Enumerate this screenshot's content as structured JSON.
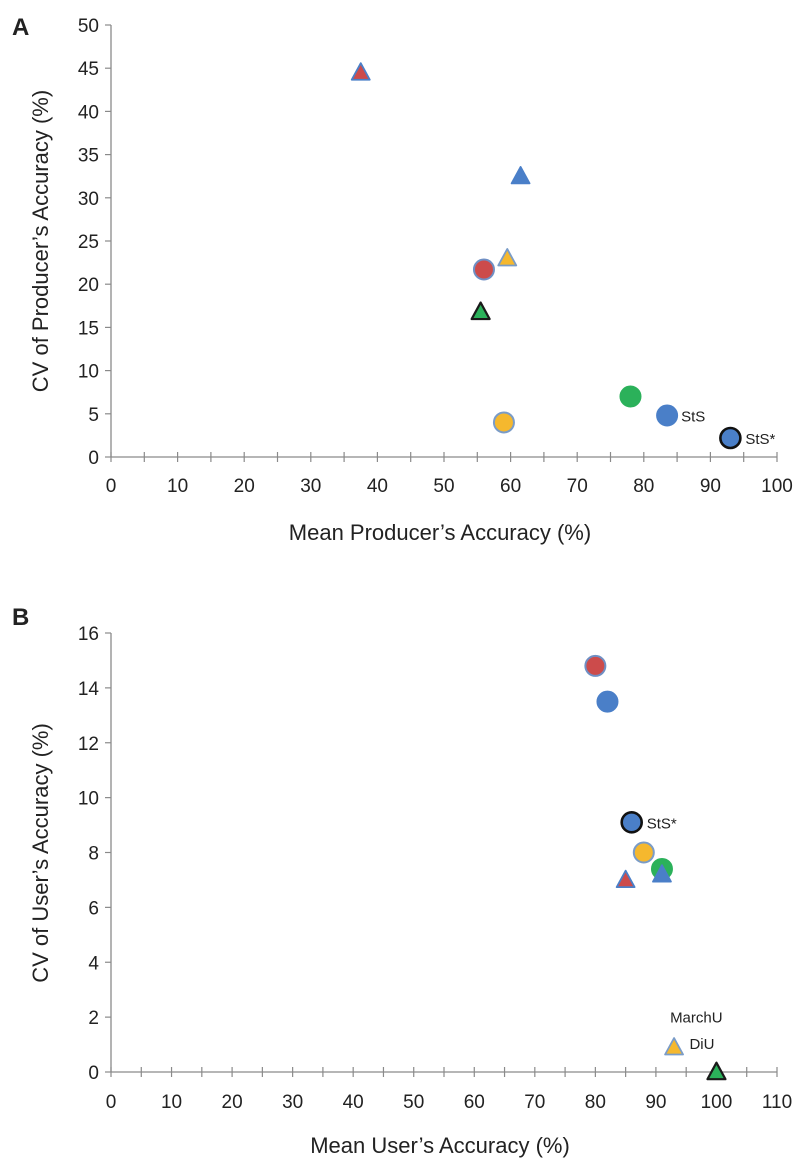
{
  "chart_data": [
    {
      "panel": "A",
      "type": "scatter",
      "xlabel": "Mean Producer’s Accuracy (%)",
      "ylabel": "CV of Producer’s Accuracy (%)",
      "xlim": [
        0,
        100
      ],
      "ylim": [
        0,
        50
      ],
      "xticks": [
        0,
        10,
        20,
        30,
        40,
        50,
        60,
        70,
        80,
        90,
        100
      ],
      "yticks": [
        0,
        5,
        10,
        15,
        20,
        25,
        30,
        35,
        40,
        45,
        50
      ],
      "grid": false,
      "points": [
        {
          "x": 37.5,
          "y": 44.5,
          "shape": "triangle",
          "fill": "#cc4b4b",
          "stroke": "#4a7fc8",
          "label": ""
        },
        {
          "x": 61.5,
          "y": 32.5,
          "shape": "triangle",
          "fill": "#4a7fc8",
          "stroke": "#4a7fc8",
          "label": ""
        },
        {
          "x": 59.5,
          "y": 23.0,
          "shape": "triangle",
          "fill": "#f5b82e",
          "stroke": "#7a9cc8",
          "label": ""
        },
        {
          "x": 56.0,
          "y": 21.7,
          "shape": "circle",
          "fill": "#cc4b4b",
          "stroke": "#6f8fc4",
          "label": ""
        },
        {
          "x": 55.5,
          "y": 16.8,
          "shape": "triangle",
          "fill": "#2bb15a",
          "stroke": "#1a1a1a",
          "label": ""
        },
        {
          "x": 78.0,
          "y": 7.0,
          "shape": "circle",
          "fill": "#2bb15a",
          "stroke": "#2bb15a",
          "label": ""
        },
        {
          "x": 59.0,
          "y": 4.0,
          "shape": "circle",
          "fill": "#f5b82e",
          "stroke": "#7a9cc8",
          "label": ""
        },
        {
          "x": 83.5,
          "y": 4.8,
          "shape": "circle",
          "fill": "#4a7fc8",
          "stroke": "#4a7fc8",
          "label": "StS"
        },
        {
          "x": 93.0,
          "y": 2.2,
          "shape": "circle",
          "fill": "#4a7fc8",
          "stroke": "#111111",
          "label": "StS*"
        }
      ]
    },
    {
      "panel": "B",
      "type": "scatter",
      "xlabel": "Mean User’s Accuracy (%)",
      "ylabel": "CV of User’s Accuracy (%)",
      "xlim": [
        0,
        110
      ],
      "ylim": [
        0,
        16
      ],
      "xticks": [
        0,
        10,
        20,
        30,
        40,
        50,
        60,
        70,
        80,
        90,
        100,
        110
      ],
      "yticks": [
        0,
        2,
        4,
        6,
        8,
        10,
        12,
        14,
        16
      ],
      "grid": false,
      "points": [
        {
          "x": 80.0,
          "y": 14.8,
          "shape": "circle",
          "fill": "#cc4b4b",
          "stroke": "#6f8fc4",
          "label": ""
        },
        {
          "x": 82.0,
          "y": 13.5,
          "shape": "circle",
          "fill": "#4a7fc8",
          "stroke": "#4a7fc8",
          "label": ""
        },
        {
          "x": 86.0,
          "y": 9.1,
          "shape": "circle",
          "fill": "#4a7fc8",
          "stroke": "#111111",
          "label": "StS*"
        },
        {
          "x": 88.0,
          "y": 8.0,
          "shape": "circle",
          "fill": "#f5b82e",
          "stroke": "#7a9cc8",
          "label": ""
        },
        {
          "x": 91.0,
          "y": 7.4,
          "shape": "circle",
          "fill": "#2bb15a",
          "stroke": "#2bb15a",
          "label": ""
        },
        {
          "x": 91.0,
          "y": 7.2,
          "shape": "triangle",
          "fill": "#4a7fc8",
          "stroke": "#4a7fc8",
          "label": ""
        },
        {
          "x": 85.0,
          "y": 7.0,
          "shape": "triangle",
          "fill": "#cc4b4b",
          "stroke": "#4a7fc8",
          "label": ""
        },
        {
          "x": 93.0,
          "y": 0.9,
          "shape": "triangle",
          "fill": "#f5b82e",
          "stroke": "#7a9cc8",
          "label": "MarchU"
        },
        {
          "x": 100.0,
          "y": 0.0,
          "shape": "triangle",
          "fill": "#2bb15a",
          "stroke": "#1a1a1a",
          "label": "DiU"
        }
      ]
    }
  ]
}
